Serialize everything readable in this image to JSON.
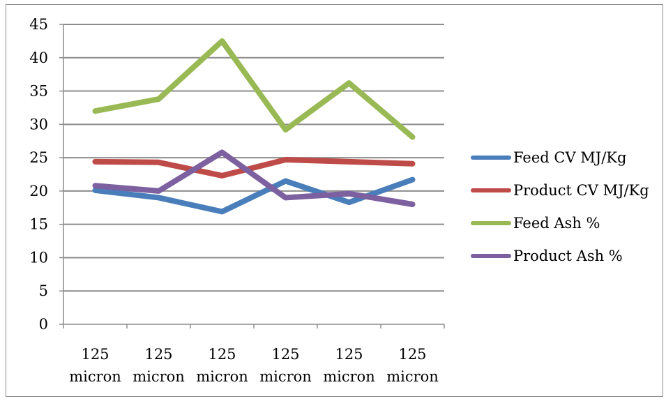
{
  "chart_data": {
    "type": "line",
    "categories": [
      "125 micron",
      "125 micron",
      "125 micron",
      "125 micron",
      "125 micron",
      "125 micron"
    ],
    "ylim": [
      0,
      45
    ],
    "yticks": [
      0,
      5,
      10,
      15,
      20,
      25,
      30,
      35,
      40,
      45
    ],
    "grid": true,
    "legend_position": "right",
    "series": [
      {
        "name": "Feed CV MJ/Kg",
        "color": "#4a7ebb",
        "values": [
          20.1,
          19.0,
          16.9,
          21.5,
          18.3,
          21.7
        ]
      },
      {
        "name": "Product CV MJ/Kg",
        "color": "#be4b48",
        "values": [
          24.4,
          24.3,
          22.3,
          24.7,
          24.4,
          24.1
        ]
      },
      {
        "name": "Feed Ash %",
        "color": "#98b954",
        "values": [
          32.0,
          33.8,
          42.5,
          29.2,
          36.2,
          28.1
        ]
      },
      {
        "name": "Product Ash %",
        "color": "#7d60a0",
        "values": [
          20.8,
          20.0,
          25.8,
          19.0,
          19.6,
          18.0
        ]
      }
    ]
  }
}
